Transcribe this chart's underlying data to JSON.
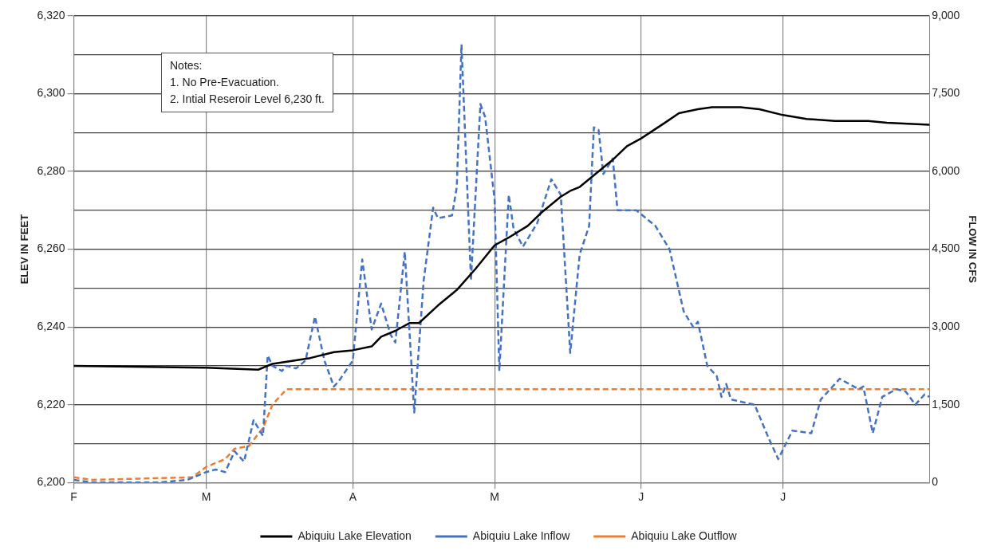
{
  "chart_data": {
    "type": "line",
    "ylabel": "ELEV IN FEET",
    "y2label": "FLOW IN CFS",
    "categories": [
      "F",
      null,
      null,
      null,
      null,
      null,
      null,
      null,
      null,
      null,
      null,
      null,
      null,
      null,
      null,
      null,
      null,
      null,
      null,
      null,
      null,
      null,
      null,
      null,
      null,
      null,
      null,
      null,
      "M",
      null,
      null,
      null,
      null,
      null,
      null,
      null,
      null,
      null,
      null,
      null,
      null,
      null,
      null,
      null,
      null,
      null,
      null,
      null,
      null,
      null,
      null,
      null,
      null,
      null,
      null,
      null,
      null,
      null,
      null,
      "A",
      null,
      null,
      null,
      null,
      null,
      null,
      null,
      null,
      null,
      null,
      null,
      null,
      null,
      null,
      null,
      null,
      null,
      null,
      null,
      null,
      null,
      null,
      null,
      null,
      null,
      null,
      null,
      null,
      null,
      "M",
      null,
      null,
      null,
      null,
      null,
      null,
      null,
      null,
      null,
      null,
      null,
      null,
      null,
      null,
      null,
      null,
      null,
      null,
      null,
      null,
      null,
      null,
      null,
      null,
      null,
      null,
      null,
      null,
      null,
      null,
      "J",
      null,
      null,
      null,
      null,
      null,
      null,
      null,
      null,
      null,
      null,
      null,
      null,
      null,
      null,
      null,
      null,
      null,
      null,
      null,
      null,
      null,
      null,
      null,
      null,
      null,
      null,
      null,
      null,
      null,
      "J",
      null,
      null,
      null,
      null,
      null,
      null,
      null,
      null,
      null,
      null,
      null,
      null,
      null,
      null,
      null,
      null,
      null,
      null,
      null,
      null,
      null,
      null,
      null,
      null,
      null,
      null,
      null,
      null,
      null,
      null,
      null
    ],
    "ylim": [
      6200,
      6320
    ],
    "yticks": [
      {
        "value": 6200,
        "label": "6,200"
      },
      {
        "value": 6220,
        "label": "6,220"
      },
      {
        "value": 6240,
        "label": "6,240"
      },
      {
        "value": 6260,
        "label": "6,260"
      },
      {
        "value": 6280,
        "label": "6,280"
      },
      {
        "value": 6300,
        "label": "6,300"
      },
      {
        "value": 6320,
        "label": "6,320"
      }
    ],
    "y2lim": [
      0,
      9000
    ],
    "y2ticks": [
      0,
      {
        "value": 750,
        "label": null
      },
      {
        "value": 1500,
        "label": "1,500"
      },
      {
        "value": 2250,
        "label": null
      },
      {
        "value": 3000,
        "label": "3,000"
      },
      {
        "value": 3750,
        "label": null
      },
      {
        "value": 4500,
        "label": "4,500"
      },
      {
        "value": 5250,
        "label": null
      },
      {
        "value": 6000,
        "label": "6,000"
      },
      {
        "value": 6750,
        "label": null
      },
      {
        "value": 7500,
        "label": "7,500"
      },
      {
        "value": 8250,
        "label": null
      },
      {
        "value": 9000,
        "label": "9,000"
      }
    ],
    "grid": true,
    "legend": "bottom",
    "marker": "none",
    "annotations": [
      "Notes:",
      "1. No Pre-Evacuation.",
      "2. Intial Reseroir Level 6,230 ft."
    ],
    "series": [
      {
        "name": "Abiquiu Lake Elevation",
        "color": "#000000",
        "line_style": "solid",
        "values": [
          6230,
          null,
          null,
          null,
          null,
          null,
          null,
          null,
          null,
          null,
          null,
          null,
          null,
          null,
          null,
          null,
          null,
          null,
          null,
          null,
          null,
          null,
          null,
          null,
          null,
          null,
          null,
          null,
          6229.5,
          null,
          null,
          null,
          null,
          null,
          null,
          null,
          null,
          null,
          null,
          6229,
          null,
          null,
          6230.5,
          null,
          null,
          null,
          null,
          null,
          null,
          null,
          6232,
          null,
          null,
          null,
          null,
          6233.5,
          null,
          null,
          null,
          6234,
          null,
          null,
          null,
          6235,
          null,
          6237.5,
          null,
          null,
          6239,
          null,
          null,
          6241,
          null,
          6241,
          null,
          null,
          null,
          6245.5,
          null,
          null,
          null,
          6249.5,
          null,
          null,
          null,
          6255,
          null,
          null,
          null,
          6261,
          null,
          null,
          6263,
          null,
          null,
          null,
          6266,
          null,
          null,
          6269.5,
          null,
          null,
          null,
          6273.5,
          null,
          6275,
          null,
          6276,
          null,
          6278,
          null,
          null,
          null,
          null,
          6283,
          null,
          null,
          6286.5,
          null,
          null,
          6288.5,
          null,
          null,
          null,
          null,
          6292.5,
          null,
          null,
          6295,
          null,
          null,
          null,
          6296,
          null,
          null,
          6296.5,
          null,
          null,
          null,
          null,
          null,
          6296.5,
          null,
          null,
          null,
          6296,
          null,
          null,
          null,
          null,
          6294.5,
          null,
          null,
          null,
          null,
          6293.5,
          null,
          null,
          null,
          null,
          null,
          6293,
          null,
          null,
          null,
          null,
          null,
          null,
          6293,
          null,
          null,
          null,
          6292.5,
          null,
          null,
          null,
          null,
          null,
          null,
          null,
          null,
          6292
        ]
      },
      {
        "name": "Abiquiu Lake Inflow",
        "color": "#4472c4",
        "line_style": "dashed",
        "axis": "y2",
        "values": [
          50,
          null,
          null,
          null,
          0,
          null,
          null,
          null,
          null,
          null,
          null,
          null,
          null,
          0,
          null,
          null,
          null,
          null,
          0,
          null,
          null,
          null,
          null,
          null,
          50,
          null,
          null,
          null,
          200,
          null,
          250,
          null,
          200,
          null,
          600,
          null,
          400,
          null,
          1200,
          null,
          900,
          2450,
          2250,
          null,
          2150,
          2250,
          null,
          2200,
          null,
          2350,
          null,
          3200,
          null,
          2350,
          null,
          1850,
          1950,
          null,
          null,
          2350,
          null,
          4300,
          null,
          2950,
          null,
          3450,
          null,
          2850,
          2700,
          null,
          4450,
          null,
          1350,
          null,
          3900,
          null,
          5300,
          5100,
          null,
          null,
          5150,
          5700,
          8450,
          null,
          3900,
          null,
          7300,
          7050,
          null,
          5450,
          2150,
          null,
          5550,
          4900,
          null,
          4550,
          null,
          null,
          5000,
          null,
          null,
          5850,
          null,
          5550,
          null,
          2500,
          null,
          4400,
          null,
          4950,
          6850,
          6800,
          5950,
          null,
          6250,
          5250,
          null,
          null,
          null,
          5250,
          null,
          null,
          null,
          4950,
          null,
          null,
          4500,
          null,
          null,
          3300,
          null,
          3000,
          3100,
          null,
          2250,
          null,
          2050,
          1650,
          1900,
          1600,
          null,
          null,
          null,
          null,
          1500,
          null,
          null,
          850,
          null,
          450,
          null,
          null,
          1000,
          null,
          null,
          null,
          950,
          null,
          1600,
          null,
          null,
          1900,
          2000,
          null,
          null,
          null,
          1800,
          1850,
          null,
          950,
          null,
          1650,
          null,
          null,
          1800,
          null,
          1750,
          null,
          1500,
          null,
          1700,
          1650
        ]
      },
      {
        "name": "Abiquiu Lake Outflow",
        "color": "#ed7d31",
        "line_style": "dashed",
        "axis": "y2",
        "values": [
          100,
          null,
          null,
          null,
          50,
          null,
          null,
          null,
          null,
          null,
          null,
          null,
          null,
          null,
          null,
          null,
          null,
          null,
          null,
          null,
          null,
          null,
          null,
          null,
          null,
          100,
          null,
          null,
          300,
          null,
          null,
          null,
          450,
          null,
          650,
          null,
          null,
          700,
          null,
          null,
          1050,
          null,
          1500,
          null,
          null,
          1800,
          null,
          null,
          1800,
          null,
          null,
          null,
          null,
          null,
          null,
          null,
          null,
          null,
          null,
          null,
          null,
          null,
          null,
          null,
          null,
          null,
          null,
          null,
          null,
          null,
          null,
          null,
          null,
          null,
          null,
          null,
          null,
          null,
          null,
          null,
          null,
          null,
          null,
          null,
          null,
          null,
          null,
          null,
          null,
          null,
          null,
          null,
          null,
          null,
          null,
          null,
          null,
          null,
          null,
          null,
          null,
          null,
          null,
          null,
          null,
          null,
          null,
          null,
          null,
          null,
          null,
          null,
          null,
          null,
          null,
          null,
          null,
          null,
          null,
          null,
          null,
          null,
          null,
          null,
          null,
          null,
          null,
          null,
          null,
          null,
          null,
          null,
          null,
          null,
          null,
          null,
          null,
          null,
          null,
          null,
          null,
          null,
          null,
          null,
          null,
          null,
          null,
          null,
          null,
          null,
          null,
          null,
          null,
          null,
          null,
          null,
          null,
          null,
          null,
          null,
          null,
          null,
          null,
          null,
          null,
          null,
          null,
          null,
          null,
          null,
          null,
          null,
          null,
          null,
          null,
          null,
          null,
          null,
          null,
          null,
          null,
          1800
        ]
      }
    ]
  }
}
